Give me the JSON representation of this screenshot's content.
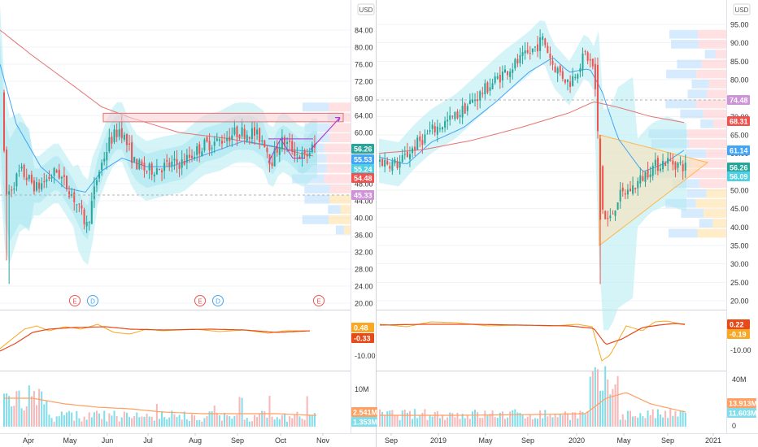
{
  "currency": "USD",
  "colors": {
    "up": "#26a69a",
    "down": "#ef5350",
    "ma_fast": "#42a5f5",
    "ma_slow": "#e57373",
    "band": "#b2ebf2",
    "macd": "#f9a825",
    "signal": "#e64a19",
    "vol_ma": "#ff9f62",
    "vol_up": "#80deea",
    "vol_down": "#f8b7b7",
    "purple": "#b03acb",
    "text": "#333333",
    "grid": "#e6e6e6"
  },
  "left": {
    "y_ticks": [
      "84.00",
      "80.00",
      "76.00",
      "72.00",
      "68.00",
      "64.00",
      "60.00",
      "56.00",
      "52.00",
      "48.00",
      "44.00",
      "40.00",
      "36.00",
      "32.00",
      "28.00",
      "24.00",
      "20.00"
    ],
    "price_labels": [
      {
        "text": "56.26",
        "color": "#26a69a"
      },
      {
        "text": "55.53",
        "color": "#42a5f5"
      },
      {
        "text": "55.24",
        "color": "#4dd0e1"
      },
      {
        "text": "54.48",
        "color": "#ef5350"
      },
      {
        "text": "45.33",
        "color": "#ce93d8"
      }
    ],
    "events": [
      "E",
      "D",
      "E",
      "D",
      "E"
    ],
    "x_labels": [
      "Apr",
      "May",
      "Jun",
      "Jul",
      "Aug",
      "Sep",
      "Oct",
      "Nov"
    ],
    "macd_ticks": [
      "-10.00"
    ],
    "macd_labels": [
      {
        "text": "0.48",
        "color": "#f9a825"
      },
      {
        "text": "-0.33",
        "color": "#e64a19"
      }
    ],
    "vol_ticks": [
      "10M"
    ],
    "vol_labels": [
      {
        "text": "2.541M",
        "color": "#ff9f62"
      },
      {
        "text": "1.353M",
        "color": "#80deea"
      }
    ]
  },
  "right": {
    "y_ticks": [
      "95.00",
      "90.00",
      "85.00",
      "80.00",
      "75.00",
      "70.00",
      "65.00",
      "60.00",
      "55.00",
      "50.00",
      "45.00",
      "40.00",
      "35.00",
      "30.00",
      "25.00",
      "20.00"
    ],
    "price_labels": [
      {
        "text": "74.48",
        "color": "#ce93d8"
      },
      {
        "text": "68.31",
        "color": "#ef5350"
      },
      {
        "text": "61.14",
        "color": "#42a5f5"
      },
      {
        "text": "56.26",
        "color": "#26a69a"
      },
      {
        "text": "56.09",
        "color": "#4dd0e1"
      }
    ],
    "x_labels": [
      "Sep",
      "2019",
      "May",
      "Sep",
      "2020",
      "May",
      "Sep",
      "2021"
    ],
    "macd_ticks": [
      "-10.00"
    ],
    "macd_labels": [
      {
        "text": "0.22",
        "color": "#e64a19"
      },
      {
        "text": "-0.19",
        "color": "#f9a825"
      }
    ],
    "vol_ticks": [
      "40M",
      "20M",
      "0"
    ],
    "vol_labels": [
      {
        "text": "13.913M",
        "color": "#ff9f62"
      },
      {
        "text": "11.603M",
        "color": "#80deea"
      }
    ]
  },
  "chart_data": [
    {
      "type": "candlestick",
      "currency": "USD",
      "x_range": [
        "Mar",
        "Nov"
      ],
      "ylim": [
        20,
        88
      ],
      "series": [
        {
          "x": [
            "Apr",
            "May",
            "Jun",
            "Jul",
            "Aug",
            "Sep",
            "Oct"
          ],
          "values": [
            46,
            41,
            60,
            50,
            56,
            60,
            56.26
          ]
        }
      ]
    },
    {
      "type": "candlestick",
      "currency": "USD",
      "x_range": [
        "Aug 2018",
        "Jan 2021"
      ],
      "ylim": [
        20,
        97
      ],
      "series": [
        {
          "x": [
            "Sep",
            "2019",
            "May",
            "Sep",
            "2020",
            "May",
            "Sep"
          ],
          "values": [
            58,
            63,
            80,
            88,
            84,
            42,
            56.26
          ]
        }
      ]
    }
  ]
}
